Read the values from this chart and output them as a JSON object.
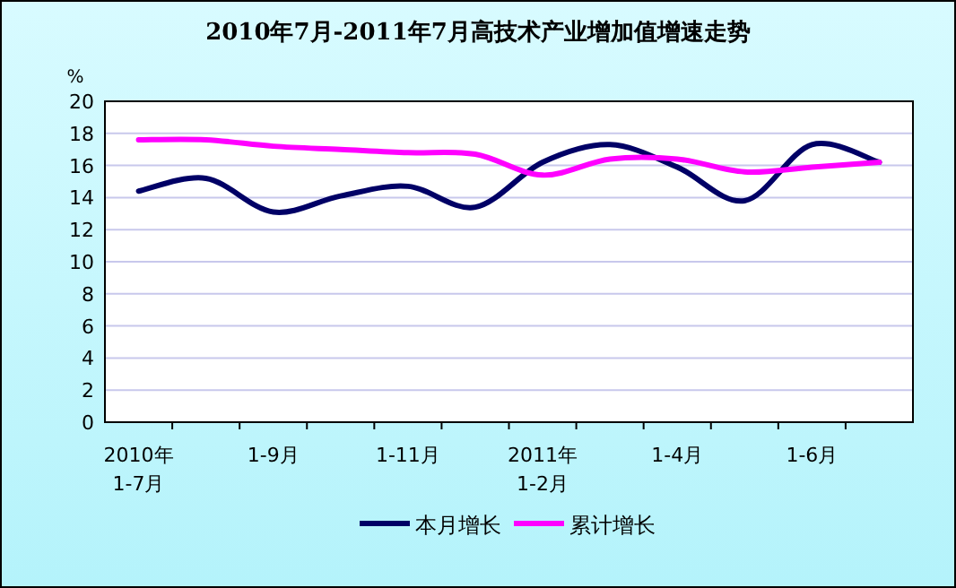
{
  "chart_data": {
    "type": "line",
    "title": "2010年7月-2011年7月高技术产业增加值增速走势",
    "ylabel": "%",
    "categories": [
      "2010年\n1-7月",
      null,
      "1-9月",
      null,
      "1-11月",
      null,
      "2011年\n1-2月",
      null,
      "1-4月",
      null,
      "1-6月",
      null
    ],
    "series": [
      {
        "name": "本月增长",
        "color": "#000066",
        "values": [
          14.4,
          15.2,
          13.1,
          14.1,
          14.7,
          13.4,
          16.2,
          17.3,
          15.9,
          13.8,
          17.3,
          16.2
        ]
      },
      {
        "name": "累计增长",
        "color": "#ff00ff",
        "values": [
          17.6,
          17.6,
          17.2,
          17.0,
          16.8,
          16.7,
          15.4,
          16.4,
          16.4,
          15.6,
          15.9,
          16.2
        ]
      }
    ],
    "ylim": [
      0,
      20
    ],
    "yticks": [
      0,
      2,
      4,
      6,
      8,
      10,
      12,
      14,
      16,
      18,
      20
    ],
    "grid": "y",
    "legend": "bottom",
    "marker": "none",
    "line_style": "solid"
  }
}
